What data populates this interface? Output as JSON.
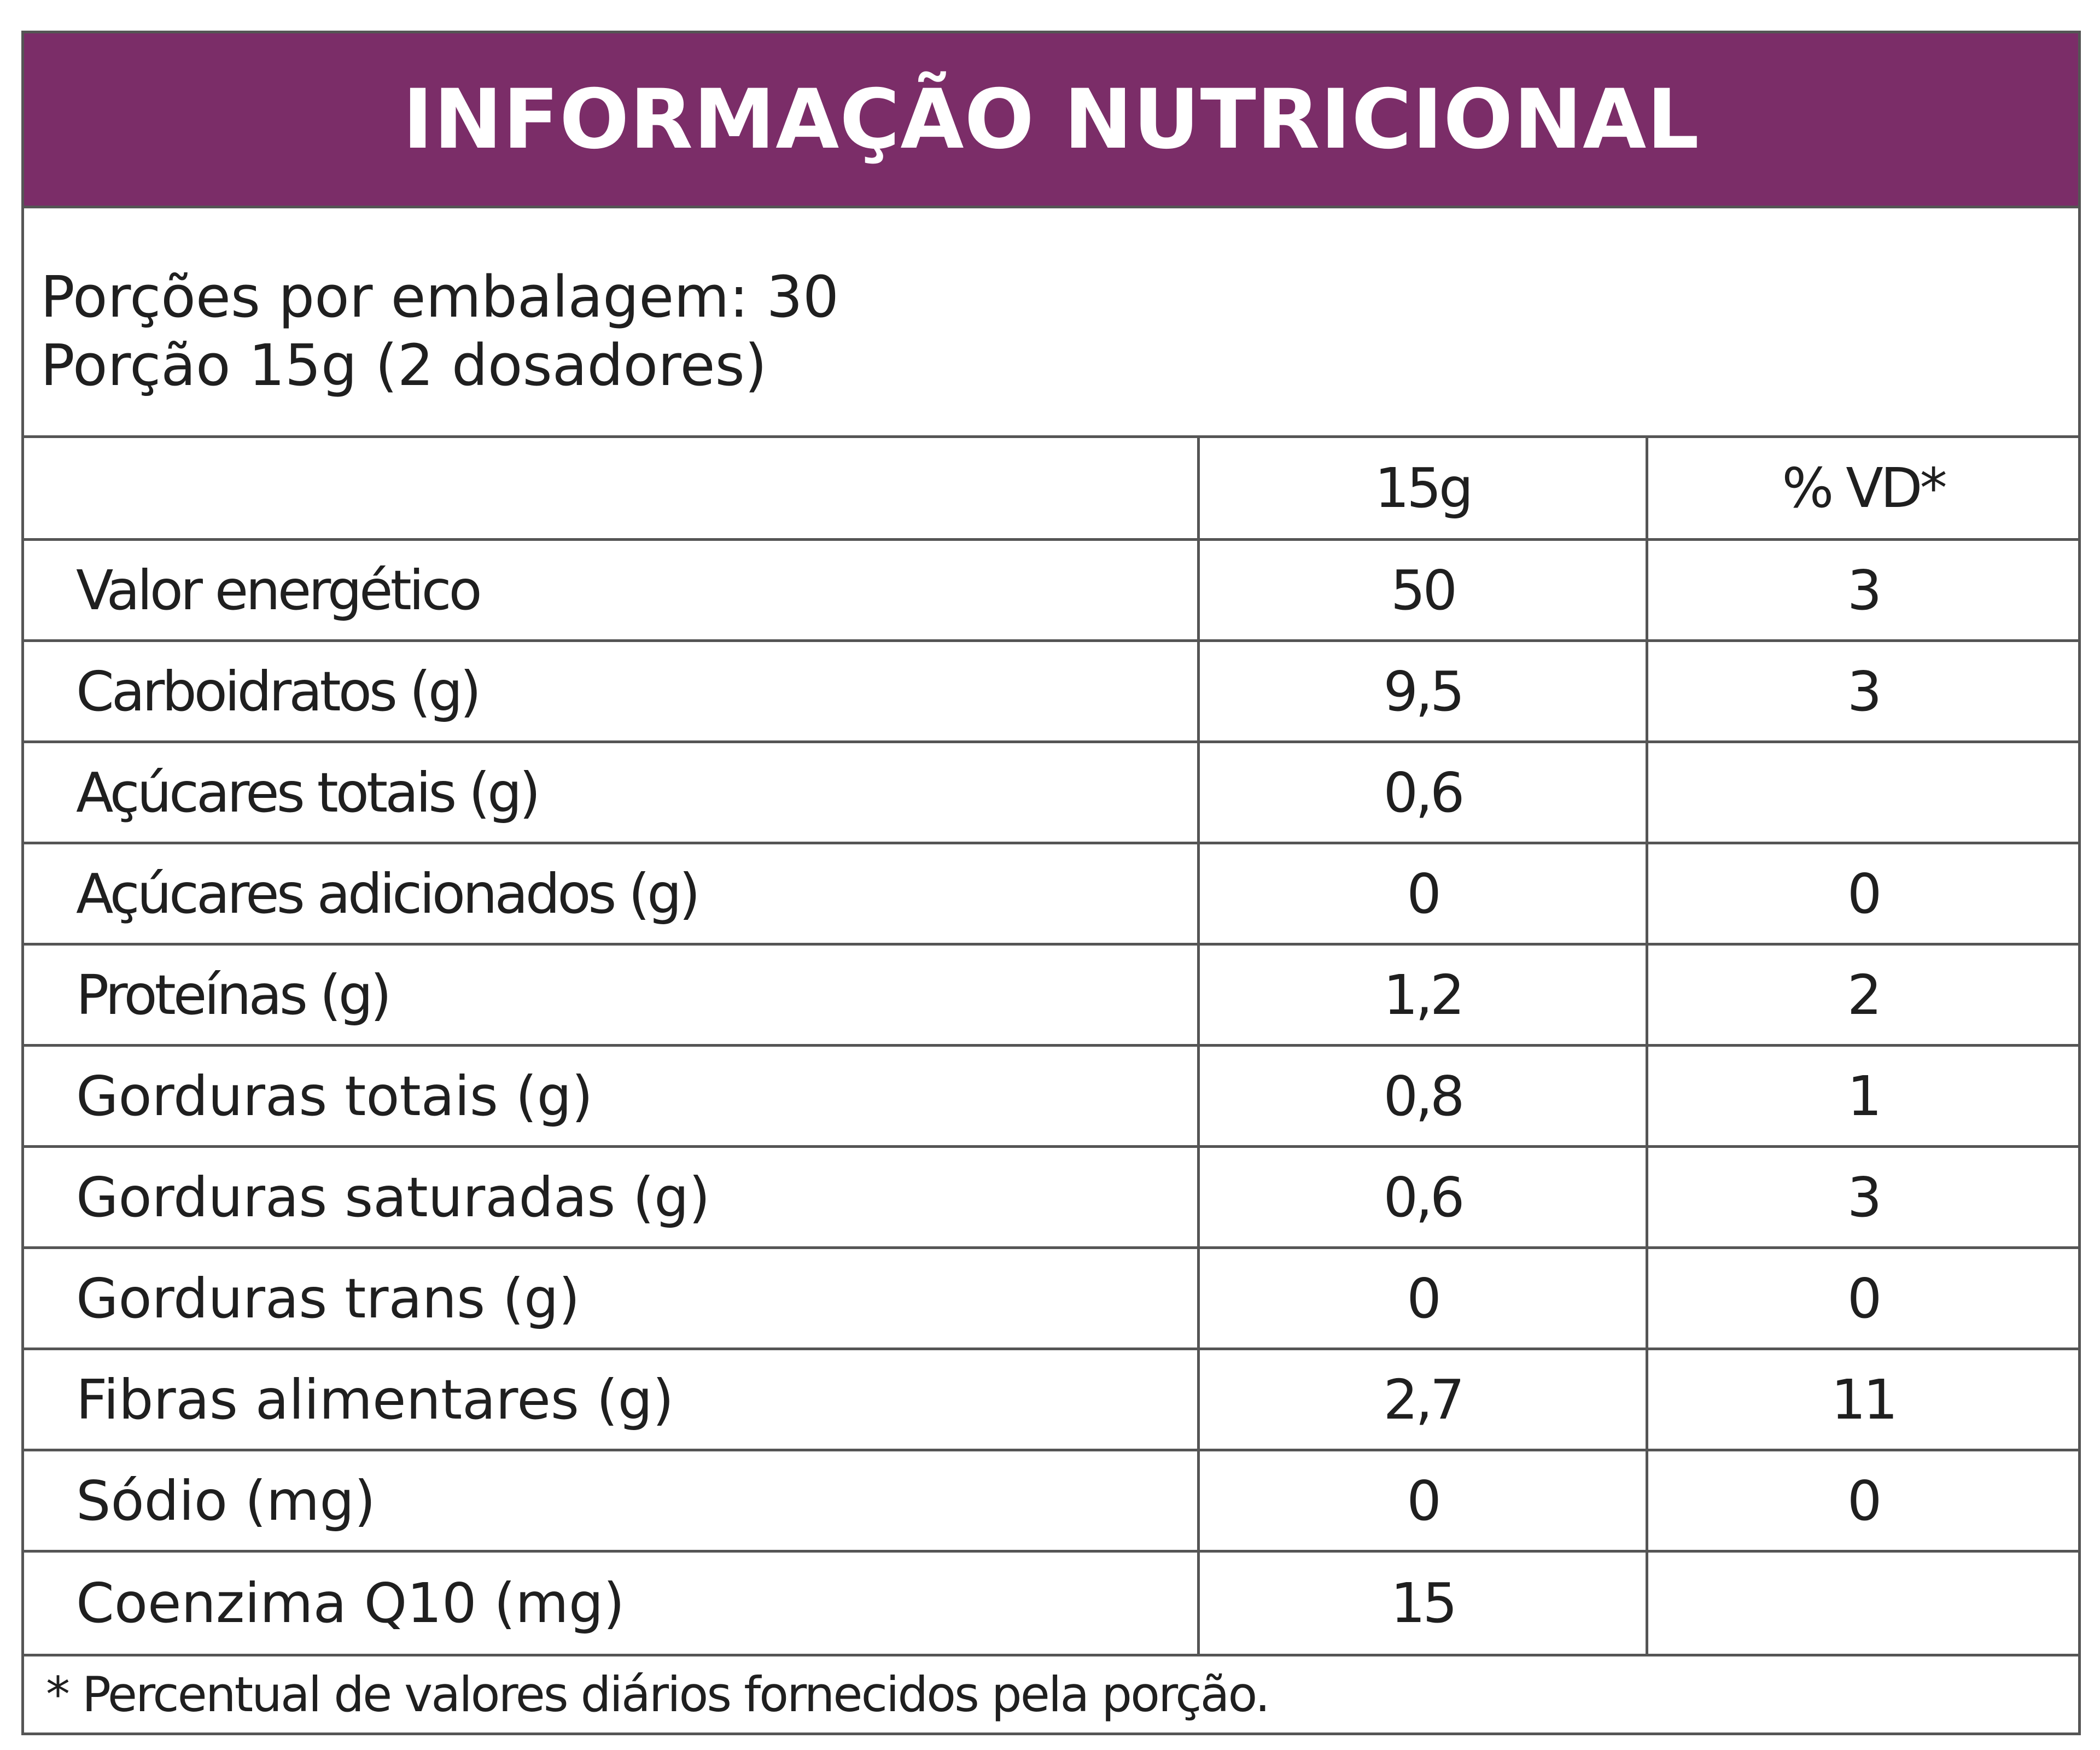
{
  "header": {
    "title": "INFORMAÇÃO NUTRICIONAL",
    "background_color": "#7b2d68",
    "text_color": "#ffffff"
  },
  "servings": {
    "per_package": "Porções por embalagem: 30",
    "portion": "Porção 15g (2 dosadores)"
  },
  "table": {
    "columns": [
      "",
      "15g",
      "% VD*"
    ],
    "rows": [
      {
        "name": "Valor energético",
        "qty": "50",
        "vd": "3"
      },
      {
        "name": "Carboidratos (g)",
        "qty": "9,5",
        "vd": "3"
      },
      {
        "name": "Açúcares totais (g)",
        "qty": "0,6",
        "vd": ""
      },
      {
        "name": "Açúcares adicionados (g)",
        "qty": "0",
        "vd": "0"
      },
      {
        "name": "Proteínas (g)",
        "qty": "1,2",
        "vd": "2"
      },
      {
        "name": "Gorduras totais (g)",
        "qty": "0,8",
        "vd": "1"
      },
      {
        "name": "Gorduras saturadas (g)",
        "qty": "0,6",
        "vd": "3"
      },
      {
        "name": "Gorduras trans (g)",
        "qty": "0",
        "vd": "0"
      },
      {
        "name": "Fibras alimentares (g)",
        "qty": "2,7",
        "vd": "11"
      },
      {
        "name": "Sódio (mg)",
        "qty": "0",
        "vd": "0"
      },
      {
        "name": "Coenzima Q10 (mg)",
        "qty": "15",
        "vd": ""
      }
    ]
  },
  "footnote": "* Percentual de valores diários fornecidos pela porção."
}
